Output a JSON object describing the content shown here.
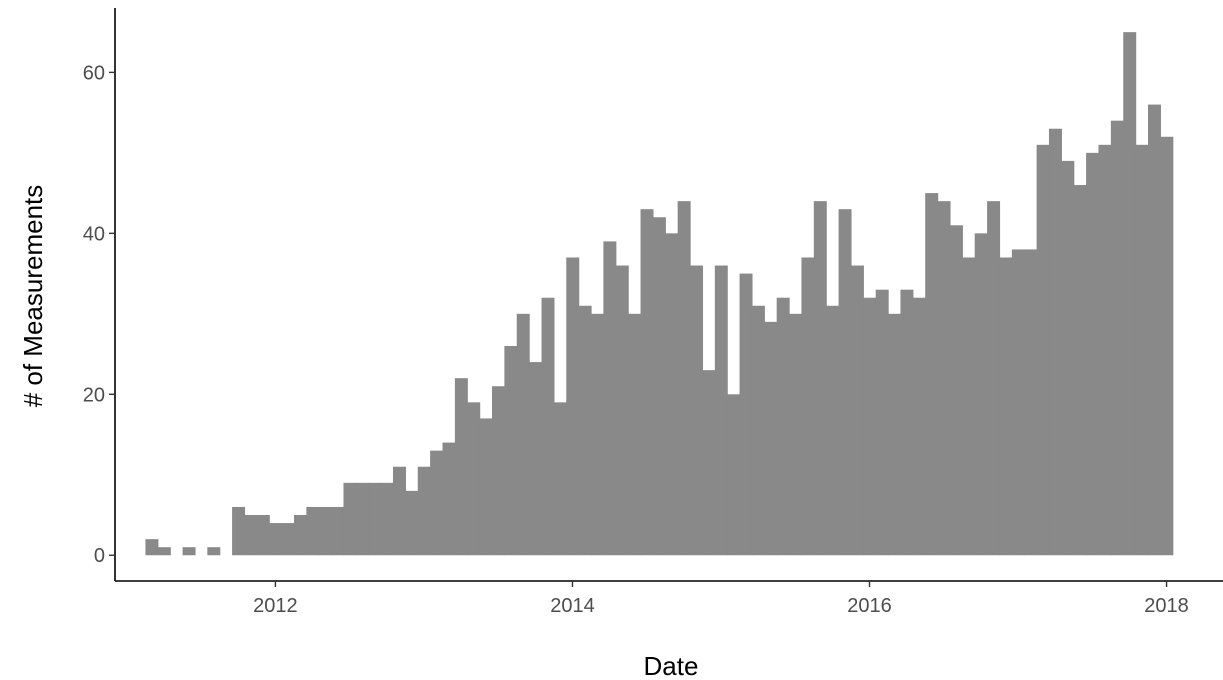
{
  "chart_data": {
    "type": "bar",
    "xlabel": "Date",
    "ylabel": "# of Measurements",
    "xlim": [
      2010.92,
      2018.38
    ],
    "ylim": [
      -3.2,
      68
    ],
    "x_ticks": [
      2012,
      2014,
      2016,
      2018
    ],
    "x_tick_labels": [
      "2012",
      "2014",
      "2016",
      "2018"
    ],
    "y_ticks": [
      0,
      20,
      40,
      60
    ],
    "y_tick_labels": [
      "0",
      "20",
      "40",
      "60"
    ],
    "grid": false,
    "bar_color": "#898989",
    "bin_start": 2011.125,
    "bin_width": 0.0833333,
    "values": [
      2,
      1,
      0,
      1,
      0,
      1,
      0,
      6,
      5,
      5,
      4,
      4,
      5,
      6,
      6,
      6,
      9,
      9,
      9,
      9,
      11,
      8,
      11,
      13,
      14,
      22,
      19,
      17,
      21,
      26,
      30,
      24,
      32,
      19,
      37,
      31,
      30,
      39,
      36,
      30,
      43,
      42,
      40,
      44,
      36,
      23,
      36,
      20,
      35,
      31,
      29,
      32,
      30,
      37,
      44,
      31,
      43,
      36,
      32,
      33,
      30,
      33,
      32,
      45,
      44,
      41,
      37,
      40,
      44,
      37,
      38,
      38,
      51,
      53,
      49,
      46,
      50,
      51,
      54,
      65,
      51,
      56,
      52
    ]
  }
}
